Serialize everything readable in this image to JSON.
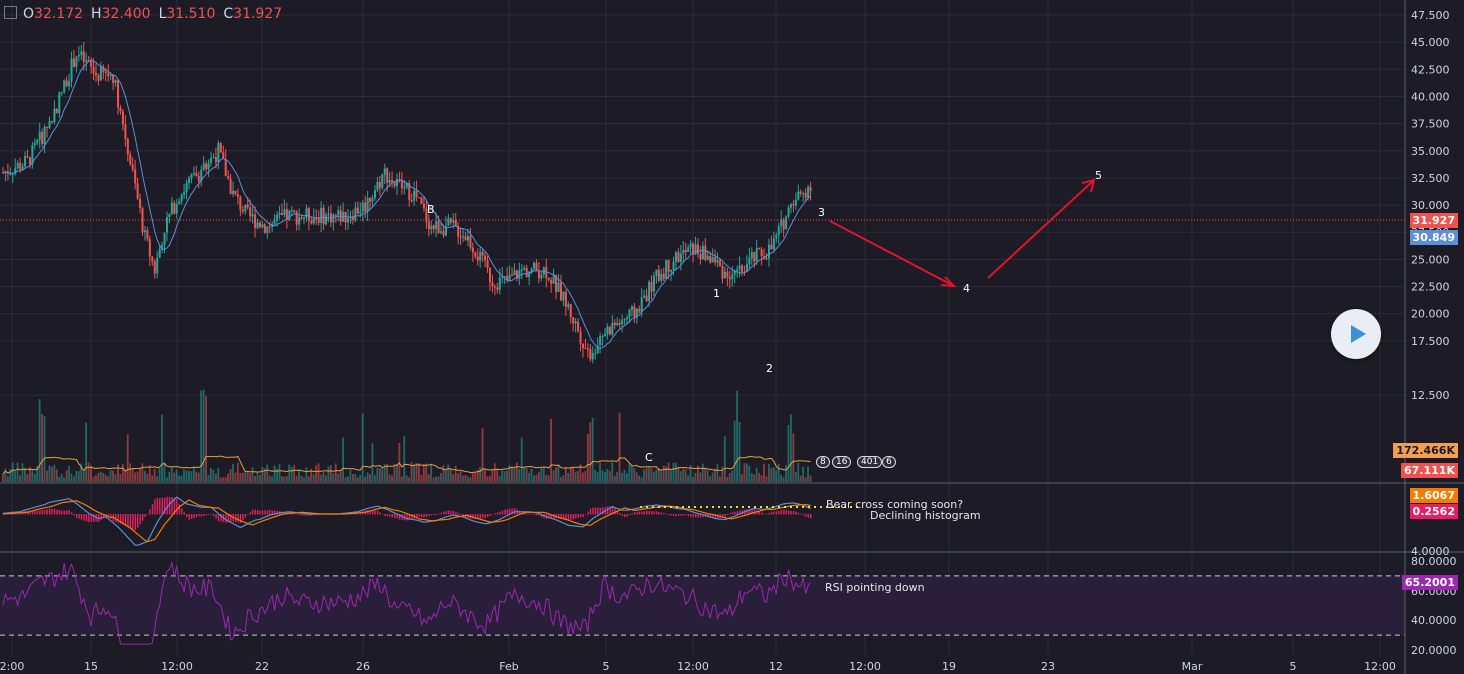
{
  "ohlc": {
    "o_label": "O",
    "o": "32.172",
    "h_label": "H",
    "h": "32.400",
    "l_label": "L",
    "l": "31.510",
    "c_label": "C",
    "c": "31.927"
  },
  "price_axis": [
    "47.500",
    "45.000",
    "42.500",
    "40.000",
    "37.500",
    "35.000",
    "32.500",
    "30.000",
    "27.500",
    "25.000",
    "22.500",
    "20.000",
    "17.500",
    "12.500"
  ],
  "price_badges": {
    "last": "31.927",
    "ma": "30.849",
    "vol_ma": "172.466K",
    "vol": "67.111K"
  },
  "macd_axis": [
    "4.0000"
  ],
  "macd_badges": {
    "macd": "1.6067",
    "hist": "0.2562"
  },
  "rsi_axis": [
    "80.0000",
    "60.0000",
    "40.0000",
    "20.0000"
  ],
  "rsi_badge": "65.2001",
  "time_axis": [
    "2:00",
    "15",
    "12:00",
    "22",
    "26",
    "Feb",
    "5",
    "12:00",
    "12",
    "12:00",
    "19",
    "23",
    "Mar",
    "5",
    "12:00"
  ],
  "wave_labels": {
    "b": "B",
    "c": "C",
    "w1": "1",
    "w2": "2",
    "w3": "3",
    "w4": "4",
    "w5": "5"
  },
  "event_pills": [
    "8",
    "16",
    "401",
    "6"
  ],
  "notes": {
    "bear": "Bear cross coming soon?",
    "hist": "Declining histogram",
    "rsi": "RSI pointing down"
  },
  "colors": {
    "bg": "#1c1b26",
    "up": "#26a69a",
    "down": "#ef5350",
    "ma": "#5b8fd8",
    "arrow": "#e0142d",
    "rsi": "#9c27b0"
  },
  "chart_data": {
    "type": "candlestick",
    "ylim": [
      12.5,
      48.5
    ],
    "anchors_close": [
      [
        0,
        33
      ],
      [
        10,
        34
      ],
      [
        20,
        38
      ],
      [
        30,
        44
      ],
      [
        38,
        42
      ],
      [
        45,
        42
      ],
      [
        52,
        34
      ],
      [
        58,
        27
      ],
      [
        62,
        24
      ],
      [
        66,
        28
      ],
      [
        72,
        31
      ],
      [
        80,
        33
      ],
      [
        88,
        35
      ],
      [
        94,
        31
      ],
      [
        100,
        29
      ],
      [
        108,
        28
      ],
      [
        116,
        29
      ],
      [
        124,
        29
      ],
      [
        132,
        29
      ],
      [
        140,
        29
      ],
      [
        148,
        30
      ],
      [
        156,
        33
      ],
      [
        160,
        32
      ],
      [
        168,
        31
      ],
      [
        175,
        28
      ],
      [
        184,
        28
      ],
      [
        190,
        27
      ],
      [
        200,
        23
      ],
      [
        206,
        23
      ],
      [
        212,
        24
      ],
      [
        222,
        24
      ],
      [
        230,
        21
      ],
      [
        236,
        18
      ],
      [
        240,
        16
      ],
      [
        244,
        18
      ],
      [
        250,
        19
      ],
      [
        258,
        20
      ],
      [
        266,
        23
      ],
      [
        274,
        25
      ],
      [
        282,
        26
      ],
      [
        290,
        25
      ],
      [
        298,
        23
      ],
      [
        306,
        25
      ],
      [
        314,
        26
      ],
      [
        322,
        30
      ],
      [
        330,
        31.9
      ]
    ],
    "volume_note": "spikes near candles 16, 82, 240, 300, 322",
    "macd_range": [
      -4,
      4
    ],
    "rsi_levels": [
      30,
      70
    ],
    "rsi_last": 65.2001
  }
}
